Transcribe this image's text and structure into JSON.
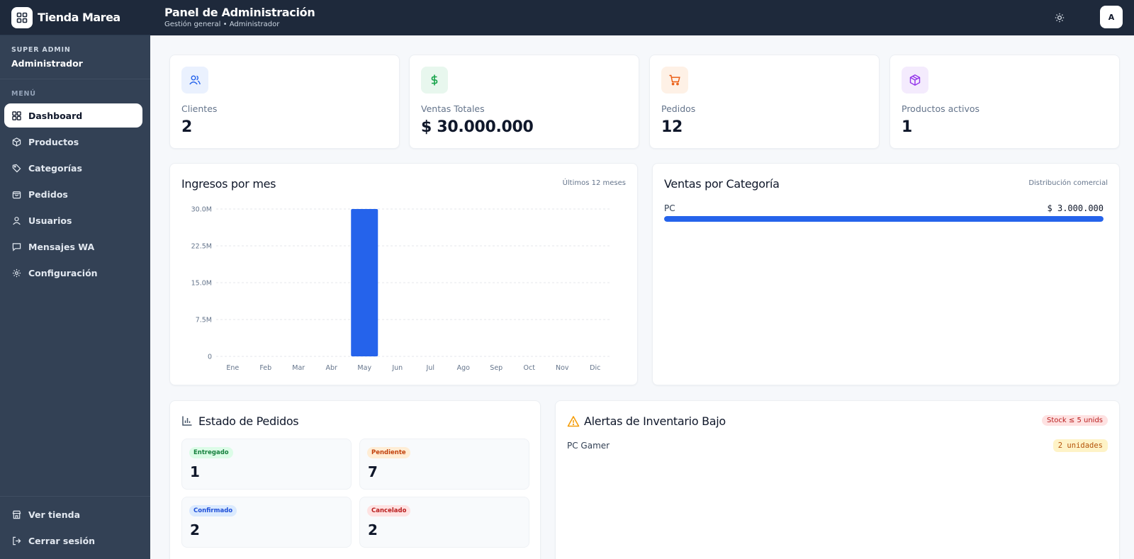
{
  "brand": {
    "name": "Tienda Marea"
  },
  "role": {
    "tag": "SUPER ADMIN",
    "name": "Administrador"
  },
  "menu": {
    "title": "MENÚ",
    "items": [
      {
        "label": "Dashboard",
        "icon": "dashboard-icon"
      },
      {
        "label": "Productos",
        "icon": "box-icon"
      },
      {
        "label": "Categorías",
        "icon": "tag-icon"
      },
      {
        "label": "Pedidos",
        "icon": "bag-icon"
      },
      {
        "label": "Usuarios",
        "icon": "user-icon"
      },
      {
        "label": "Mensajes WA",
        "icon": "message-icon"
      },
      {
        "label": "Configuración",
        "icon": "gear-icon"
      }
    ],
    "bottom": [
      {
        "label": "Ver tienda",
        "icon": "store-icon"
      },
      {
        "label": "Cerrar sesión",
        "icon": "logout-icon"
      }
    ]
  },
  "header": {
    "title": "Panel de Administración",
    "subtitle": "Gestión general • Administrador",
    "avatar": "A"
  },
  "stats": [
    {
      "label": "Clientes",
      "value": "2",
      "icon": "users-icon",
      "color": "#2563eb",
      "bg": "#eaf1fe"
    },
    {
      "label": "Ventas Totales",
      "value": "$ 30.000.000",
      "icon": "dollar-icon",
      "color": "#16a34a",
      "bg": "#e8f7ee"
    },
    {
      "label": "Pedidos",
      "value": "12",
      "icon": "cart-icon",
      "color": "#ea580c",
      "bg": "#fef1e6"
    },
    {
      "label": "Productos activos",
      "value": "1",
      "icon": "cube-icon",
      "color": "#9333ea",
      "bg": "#f4ebfd"
    }
  ],
  "revenue": {
    "title": "Ingresos por mes",
    "meta": "Últimos 12 meses"
  },
  "chart_data": {
    "type": "bar",
    "categories": [
      "Ene",
      "Feb",
      "Mar",
      "Abr",
      "May",
      "Jun",
      "Jul",
      "Ago",
      "Sep",
      "Oct",
      "Nov",
      "Dic"
    ],
    "values": [
      0,
      0,
      0,
      0,
      30000000,
      0,
      0,
      0,
      0,
      0,
      0,
      0
    ],
    "yticks": [
      "0",
      "7.5M",
      "15.0M",
      "22.5M",
      "30.0M"
    ],
    "ylim": [
      0,
      30000000
    ],
    "color": "#2563eb",
    "grid": true,
    "title": "Ingresos por mes"
  },
  "category_sales": {
    "title": "Ventas por Categoría",
    "meta": "Distribución comercial",
    "items": [
      {
        "label": "PC",
        "value": "$ 3.000.000",
        "fraction": 1.0
      }
    ]
  },
  "order_status": {
    "title": "Estado de Pedidos",
    "items": [
      {
        "label": "Entregado",
        "count": "1",
        "fg": "#15803d",
        "bg": "#dcfce7"
      },
      {
        "label": "Pendiente",
        "count": "7",
        "fg": "#c2410c",
        "bg": "#ffedd5"
      },
      {
        "label": "Confirmado",
        "count": "2",
        "fg": "#1d4ed8",
        "bg": "#dbeafe"
      },
      {
        "label": "Cancelado",
        "count": "2",
        "fg": "#b91c1c",
        "bg": "#fee2e2"
      }
    ]
  },
  "inventory_alerts": {
    "title": "Alertas de Inventario Bajo",
    "badge": "Stock ≤ 5 unids",
    "items": [
      {
        "name": "PC Gamer",
        "qty": "2 unidades"
      }
    ]
  }
}
